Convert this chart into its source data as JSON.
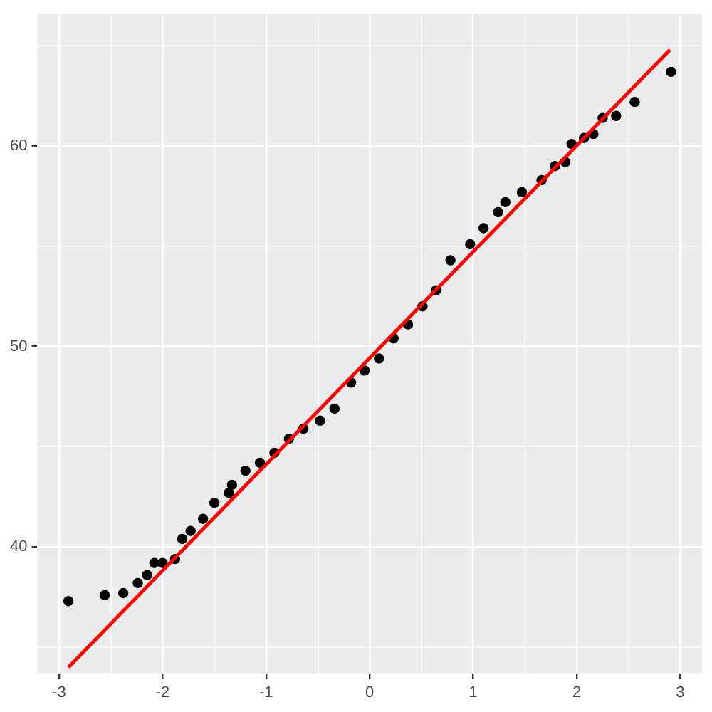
{
  "chart_data": {
    "type": "scatter",
    "marker": "circle",
    "grid": true,
    "legend": false,
    "xlim": [
      -3.21,
      3.21
    ],
    "ylim": [
      33.7,
      66.6
    ],
    "xticks": [
      -3,
      {
        "value": -2.5,
        "label": null
      },
      -2,
      {
        "value": -1.5,
        "label": null
      },
      -1,
      {
        "value": -0.5,
        "label": null
      },
      0,
      {
        "value": 0.5,
        "label": null
      },
      1,
      {
        "value": 1.5,
        "label": null
      },
      2,
      {
        "value": 2.5,
        "label": null
      },
      3
    ],
    "yticks": [
      {
        "value": 35,
        "label": null
      },
      40,
      {
        "value": 45,
        "label": null
      },
      50,
      {
        "value": 55,
        "label": null
      },
      60,
      {
        "value": 65,
        "label": null
      }
    ],
    "series": [
      {
        "type": "scatter",
        "color": "#000000",
        "x": [
          -2.91,
          -2.56,
          -2.38,
          -2.24,
          -2.15,
          -2.08,
          -2.0,
          -1.88,
          -1.81,
          -1.73,
          -1.61,
          -1.5,
          -1.36,
          -1.33,
          -1.2,
          -1.06,
          -0.92,
          -0.78,
          -0.64,
          -0.48,
          -0.34,
          -0.18,
          -0.05,
          0.09,
          0.23,
          0.37,
          0.51,
          0.64,
          0.78,
          0.97,
          1.1,
          1.24,
          1.31,
          1.47,
          1.66,
          1.79,
          1.89,
          1.95,
          2.07,
          2.16,
          2.25,
          2.38,
          2.56,
          2.91
        ],
        "values": [
          37.3,
          37.6,
          37.7,
          38.2,
          38.6,
          39.2,
          39.2,
          39.4,
          40.4,
          40.8,
          41.4,
          42.2,
          42.7,
          43.1,
          43.8,
          44.2,
          44.7,
          45.4,
          45.9,
          46.3,
          46.9,
          48.2,
          48.8,
          49.4,
          50.4,
          51.1,
          52.0,
          52.8,
          54.3,
          55.1,
          55.9,
          56.7,
          57.2,
          57.7,
          58.3,
          59.0,
          59.2,
          60.1,
          60.4,
          60.6,
          61.4,
          61.5,
          62.2,
          63.7
        ]
      },
      {
        "type": "line",
        "color": "#ff0000",
        "marker": "none",
        "x": [
          -2.91,
          2.9
        ],
        "values": [
          34.0,
          64.8
        ]
      }
    ]
  }
}
